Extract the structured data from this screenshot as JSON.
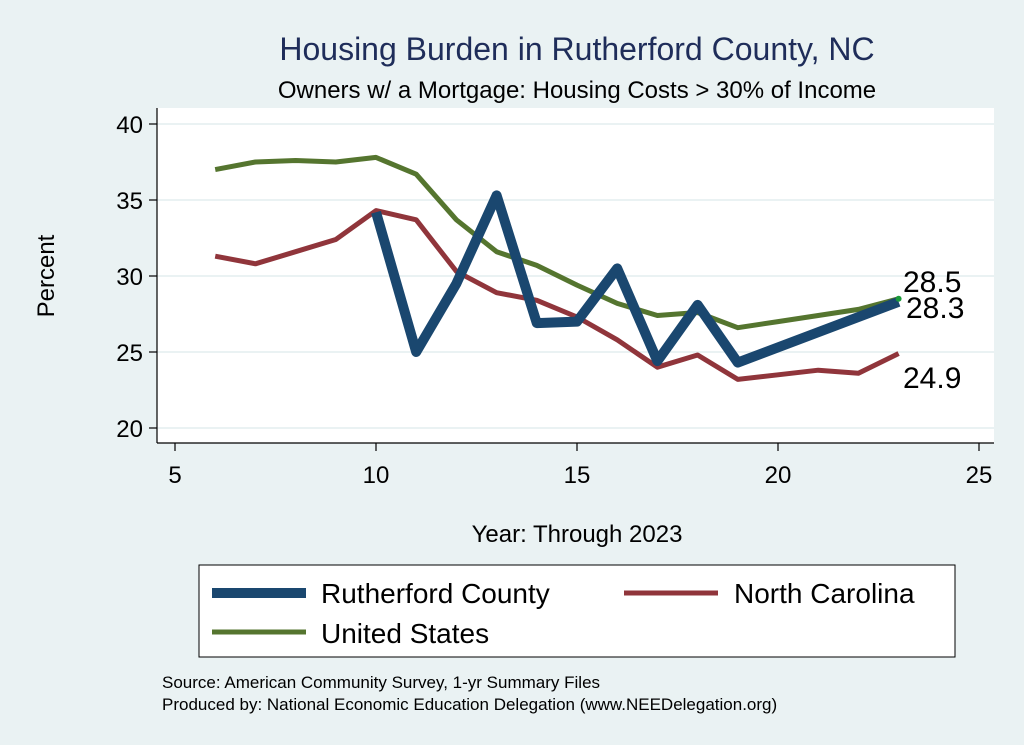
{
  "chart_data": {
    "type": "line",
    "title": "Housing Burden in Rutherford County, NC",
    "subtitle": "Owners w/ a Mortgage: Housing Costs > 30% of Income",
    "xlabel": "Year: Through 2023",
    "ylabel": "Percent",
    "xlim": [
      5,
      25
    ],
    "ylim": [
      20,
      40
    ],
    "xticks": [
      "5",
      "10",
      "15",
      "20",
      "25"
    ],
    "yticks": [
      "20",
      "25",
      "30",
      "35",
      "40"
    ],
    "grid": true,
    "series": [
      {
        "name": "Rutherford County",
        "color": "#1a476f",
        "x": [
          10,
          11,
          12,
          13,
          14,
          15,
          16,
          17,
          18,
          19,
          23
        ],
        "values": [
          34.2,
          25.0,
          29.5,
          35.3,
          26.9,
          27.0,
          30.5,
          24.4,
          28.1,
          24.3,
          28.3
        ],
        "end_label": "28.3"
      },
      {
        "name": "North Carolina",
        "color": "#90353b",
        "x": [
          6,
          7,
          8,
          9,
          10,
          11,
          12,
          13,
          14,
          15,
          16,
          17,
          18,
          19,
          20,
          21,
          22,
          23
        ],
        "values": [
          31.3,
          30.8,
          31.6,
          32.4,
          34.3,
          33.7,
          30.3,
          28.9,
          28.4,
          27.3,
          25.8,
          24.0,
          24.8,
          23.2,
          23.5,
          23.8,
          23.6,
          24.9
        ],
        "end_label": "24.9"
      },
      {
        "name": "United States",
        "color": "#55752f",
        "x": [
          6,
          7,
          8,
          9,
          10,
          11,
          12,
          13,
          14,
          15,
          16,
          17,
          18,
          19,
          20,
          21,
          22,
          23
        ],
        "values": [
          37.0,
          37.5,
          37.6,
          37.5,
          37.8,
          36.7,
          33.7,
          31.6,
          30.7,
          29.4,
          28.2,
          27.4,
          27.6,
          26.6,
          27.0,
          27.4,
          27.8,
          28.5
        ],
        "end_label": "28.5"
      }
    ],
    "legend": {
      "position": "bottom",
      "items": [
        "Rutherford County",
        "North Carolina",
        "United States"
      ]
    }
  },
  "footer": {
    "source": "Source: American Community Survey, 1-yr Summary Files",
    "produced_by": "Produced by: National Economic Education Delegation (www.NEEDelegation.org)"
  }
}
